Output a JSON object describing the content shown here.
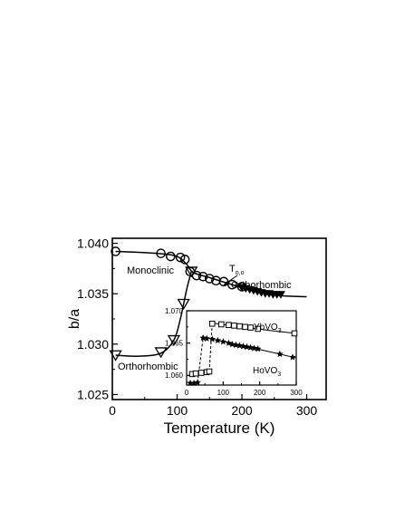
{
  "chart_data": [
    {
      "type": "scatter",
      "xlabel": "Temperature (K)",
      "ylabel": "b/a",
      "xlim": [
        0,
        330
      ],
      "ylim": [
        1.0245,
        1.0405
      ],
      "xticks": [
        0,
        100,
        200,
        300
      ],
      "yticks": [
        1.025,
        1.03,
        1.035,
        1.04
      ],
      "ytick_labels": [
        "1.025",
        "1.030",
        "1.035",
        "1.040"
      ],
      "annotations": {
        "monoclinic": "Monoclinic",
        "orthorhombic_high": "Orthorhombic",
        "orthorhombic_low": "Orthorhombic",
        "transition_T": "T",
        "transition_sub": "o,o"
      },
      "series": [
        {
          "marker": "open-circle",
          "values": [
            [
              5,
              1.0392
            ],
            [
              75,
              1.039
            ],
            [
              90,
              1.0387
            ],
            [
              105,
              1.0386
            ],
            [
              112,
              1.0384
            ],
            [
              120,
              1.0372
            ],
            [
              130,
              1.0368
            ],
            [
              140,
              1.0367
            ],
            [
              150,
              1.0365
            ],
            [
              160,
              1.0363
            ],
            [
              172,
              1.0362
            ],
            [
              185,
              1.0359
            ],
            [
              200,
              1.0357
            ]
          ]
        },
        {
          "marker": "open-triangle-down",
          "values": [
            [
              5,
              1.0289
            ],
            [
              75,
              1.0292
            ],
            [
              95,
              1.0304
            ],
            [
              110,
              1.034
            ],
            [
              122,
              1.0372
            ]
          ]
        },
        {
          "marker": "filled-triangle-down",
          "values": [
            [
              200,
              1.0356
            ],
            [
              206,
              1.0355
            ],
            [
              212,
              1.0354
            ],
            [
              218,
              1.0353
            ],
            [
              224,
              1.0352
            ],
            [
              230,
              1.0351
            ],
            [
              236,
              1.035
            ],
            [
              242,
              1.035
            ],
            [
              248,
              1.0349
            ],
            [
              254,
              1.0349
            ],
            [
              260,
              1.0349
            ]
          ]
        }
      ],
      "fit_curves": [
        [
          [
            5,
            1.0392
          ],
          [
            70,
            1.039
          ],
          [
            100,
            1.0387
          ],
          [
            115,
            1.0379
          ],
          [
            125,
            1.0371
          ],
          [
            150,
            1.0366
          ],
          [
            180,
            1.036
          ],
          [
            205,
            1.0355
          ],
          [
            230,
            1.0351
          ],
          [
            260,
            1.0348
          ],
          [
            300,
            1.0347
          ]
        ],
        [
          [
            5,
            1.0289
          ],
          [
            40,
            1.0288
          ],
          [
            75,
            1.0291
          ],
          [
            95,
            1.0304
          ],
          [
            105,
            1.0325
          ],
          [
            115,
            1.0355
          ],
          [
            122,
            1.0372
          ]
        ]
      ]
    },
    {
      "type": "scatter",
      "xlim": [
        0,
        300
      ],
      "ylim": [
        1.0585,
        1.07
      ],
      "xticks": [
        0,
        100,
        200,
        300
      ],
      "yticks": [
        1.06,
        1.065,
        1.07
      ],
      "ytick_labels": [
        "1.060",
        "1.065",
        "1.070"
      ],
      "series": [
        {
          "name": "YbVO",
          "name_sub": "3",
          "marker": "open-square",
          "values": [
            [
              15,
              1.0602
            ],
            [
              25,
              1.0603
            ],
            [
              40,
              1.0604
            ],
            [
              55,
              1.0605
            ],
            [
              62,
              1.0606
            ],
            [
              70,
              1.068
            ],
            [
              95,
              1.0679
            ],
            [
              115,
              1.0678
            ],
            [
              130,
              1.0677
            ],
            [
              145,
              1.0676
            ],
            [
              160,
              1.0675
            ],
            [
              175,
              1.0674
            ],
            [
              195,
              1.0672
            ],
            [
              295,
              1.0665
            ]
          ]
        },
        {
          "name": "HoVO",
          "name_sub": "3",
          "marker": "filled-star",
          "values": [
            [
              10,
              1.0588
            ],
            [
              20,
              1.0588
            ],
            [
              30,
              1.0589
            ],
            [
              45,
              1.0658
            ],
            [
              55,
              1.0657
            ],
            [
              70,
              1.0656
            ],
            [
              85,
              1.0654
            ],
            [
              100,
              1.0652
            ],
            [
              115,
              1.065
            ],
            [
              125,
              1.0648
            ],
            [
              135,
              1.0647
            ],
            [
              145,
              1.0646
            ],
            [
              155,
              1.0645
            ],
            [
              165,
              1.0644
            ],
            [
              175,
              1.0643
            ],
            [
              185,
              1.0642
            ],
            [
              195,
              1.0641
            ],
            [
              255,
              1.0633
            ],
            [
              290,
              1.0628
            ]
          ]
        }
      ],
      "fit_curves": [
        [
          [
            70,
            1.0681
          ],
          [
            150,
            1.0675
          ],
          [
            220,
            1.067
          ],
          [
            300,
            1.0665
          ]
        ],
        [
          [
            45,
            1.0659
          ],
          [
            120,
            1.065
          ],
          [
            200,
            1.064
          ],
          [
            300,
            1.0627
          ]
        ]
      ],
      "jumps": [
        [
          [
            62,
            1.0606
          ],
          [
            70,
            1.068
          ]
        ],
        [
          [
            30,
            1.0589
          ],
          [
            45,
            1.0658
          ]
        ]
      ]
    }
  ]
}
